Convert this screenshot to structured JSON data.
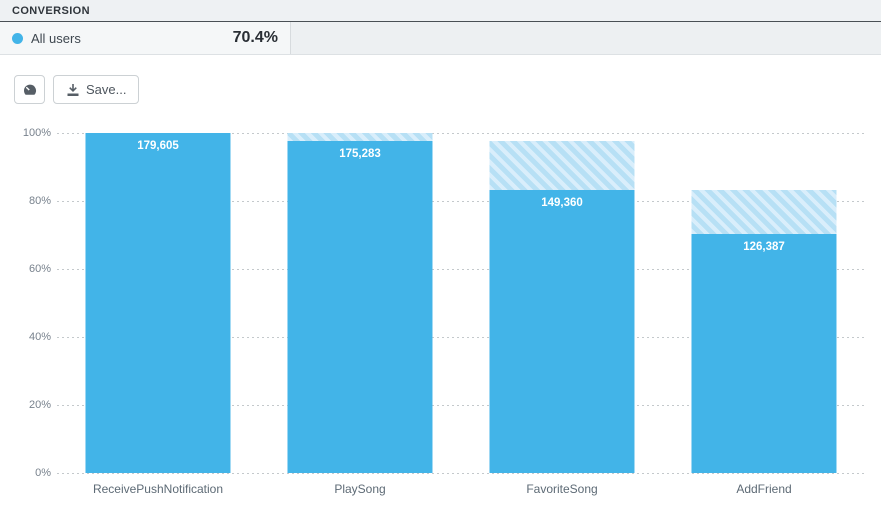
{
  "header": {
    "title": "CONVERSION"
  },
  "legend": {
    "series_label": "All users",
    "conversion_rate": "70.4%",
    "dot_color": "#42b4e8"
  },
  "toolbar": {
    "dashboard_button_icon": "gauge-icon",
    "save_label": "Save..."
  },
  "chart_data": {
    "type": "bar",
    "subtype": "funnel",
    "title": "",
    "xlabel": "",
    "ylabel": "",
    "categories": [
      "ReceivePushNotification",
      "PlaySong",
      "FavoriteSong",
      "AddFriend"
    ],
    "values": [
      179605,
      175283,
      149360,
      126387
    ],
    "value_labels": [
      "179,605",
      "175,283",
      "149,360",
      "126,387"
    ],
    "percent_of_first": [
      100,
      97.6,
      83.2,
      70.4
    ],
    "ylim": [
      0,
      100
    ],
    "y_ticks": [
      0,
      20,
      40,
      60,
      80,
      100
    ],
    "y_tick_labels": [
      "0%",
      "20%",
      "40%",
      "60%",
      "80%",
      "100%"
    ],
    "grid": "horizontal-dotted",
    "legend_position": "top-left",
    "bar_color": "#42b4e8",
    "hatch_colors": [
      "#d9eefb",
      "#b7e0f5"
    ],
    "hatch_meaning": "drop-off from previous funnel step"
  }
}
